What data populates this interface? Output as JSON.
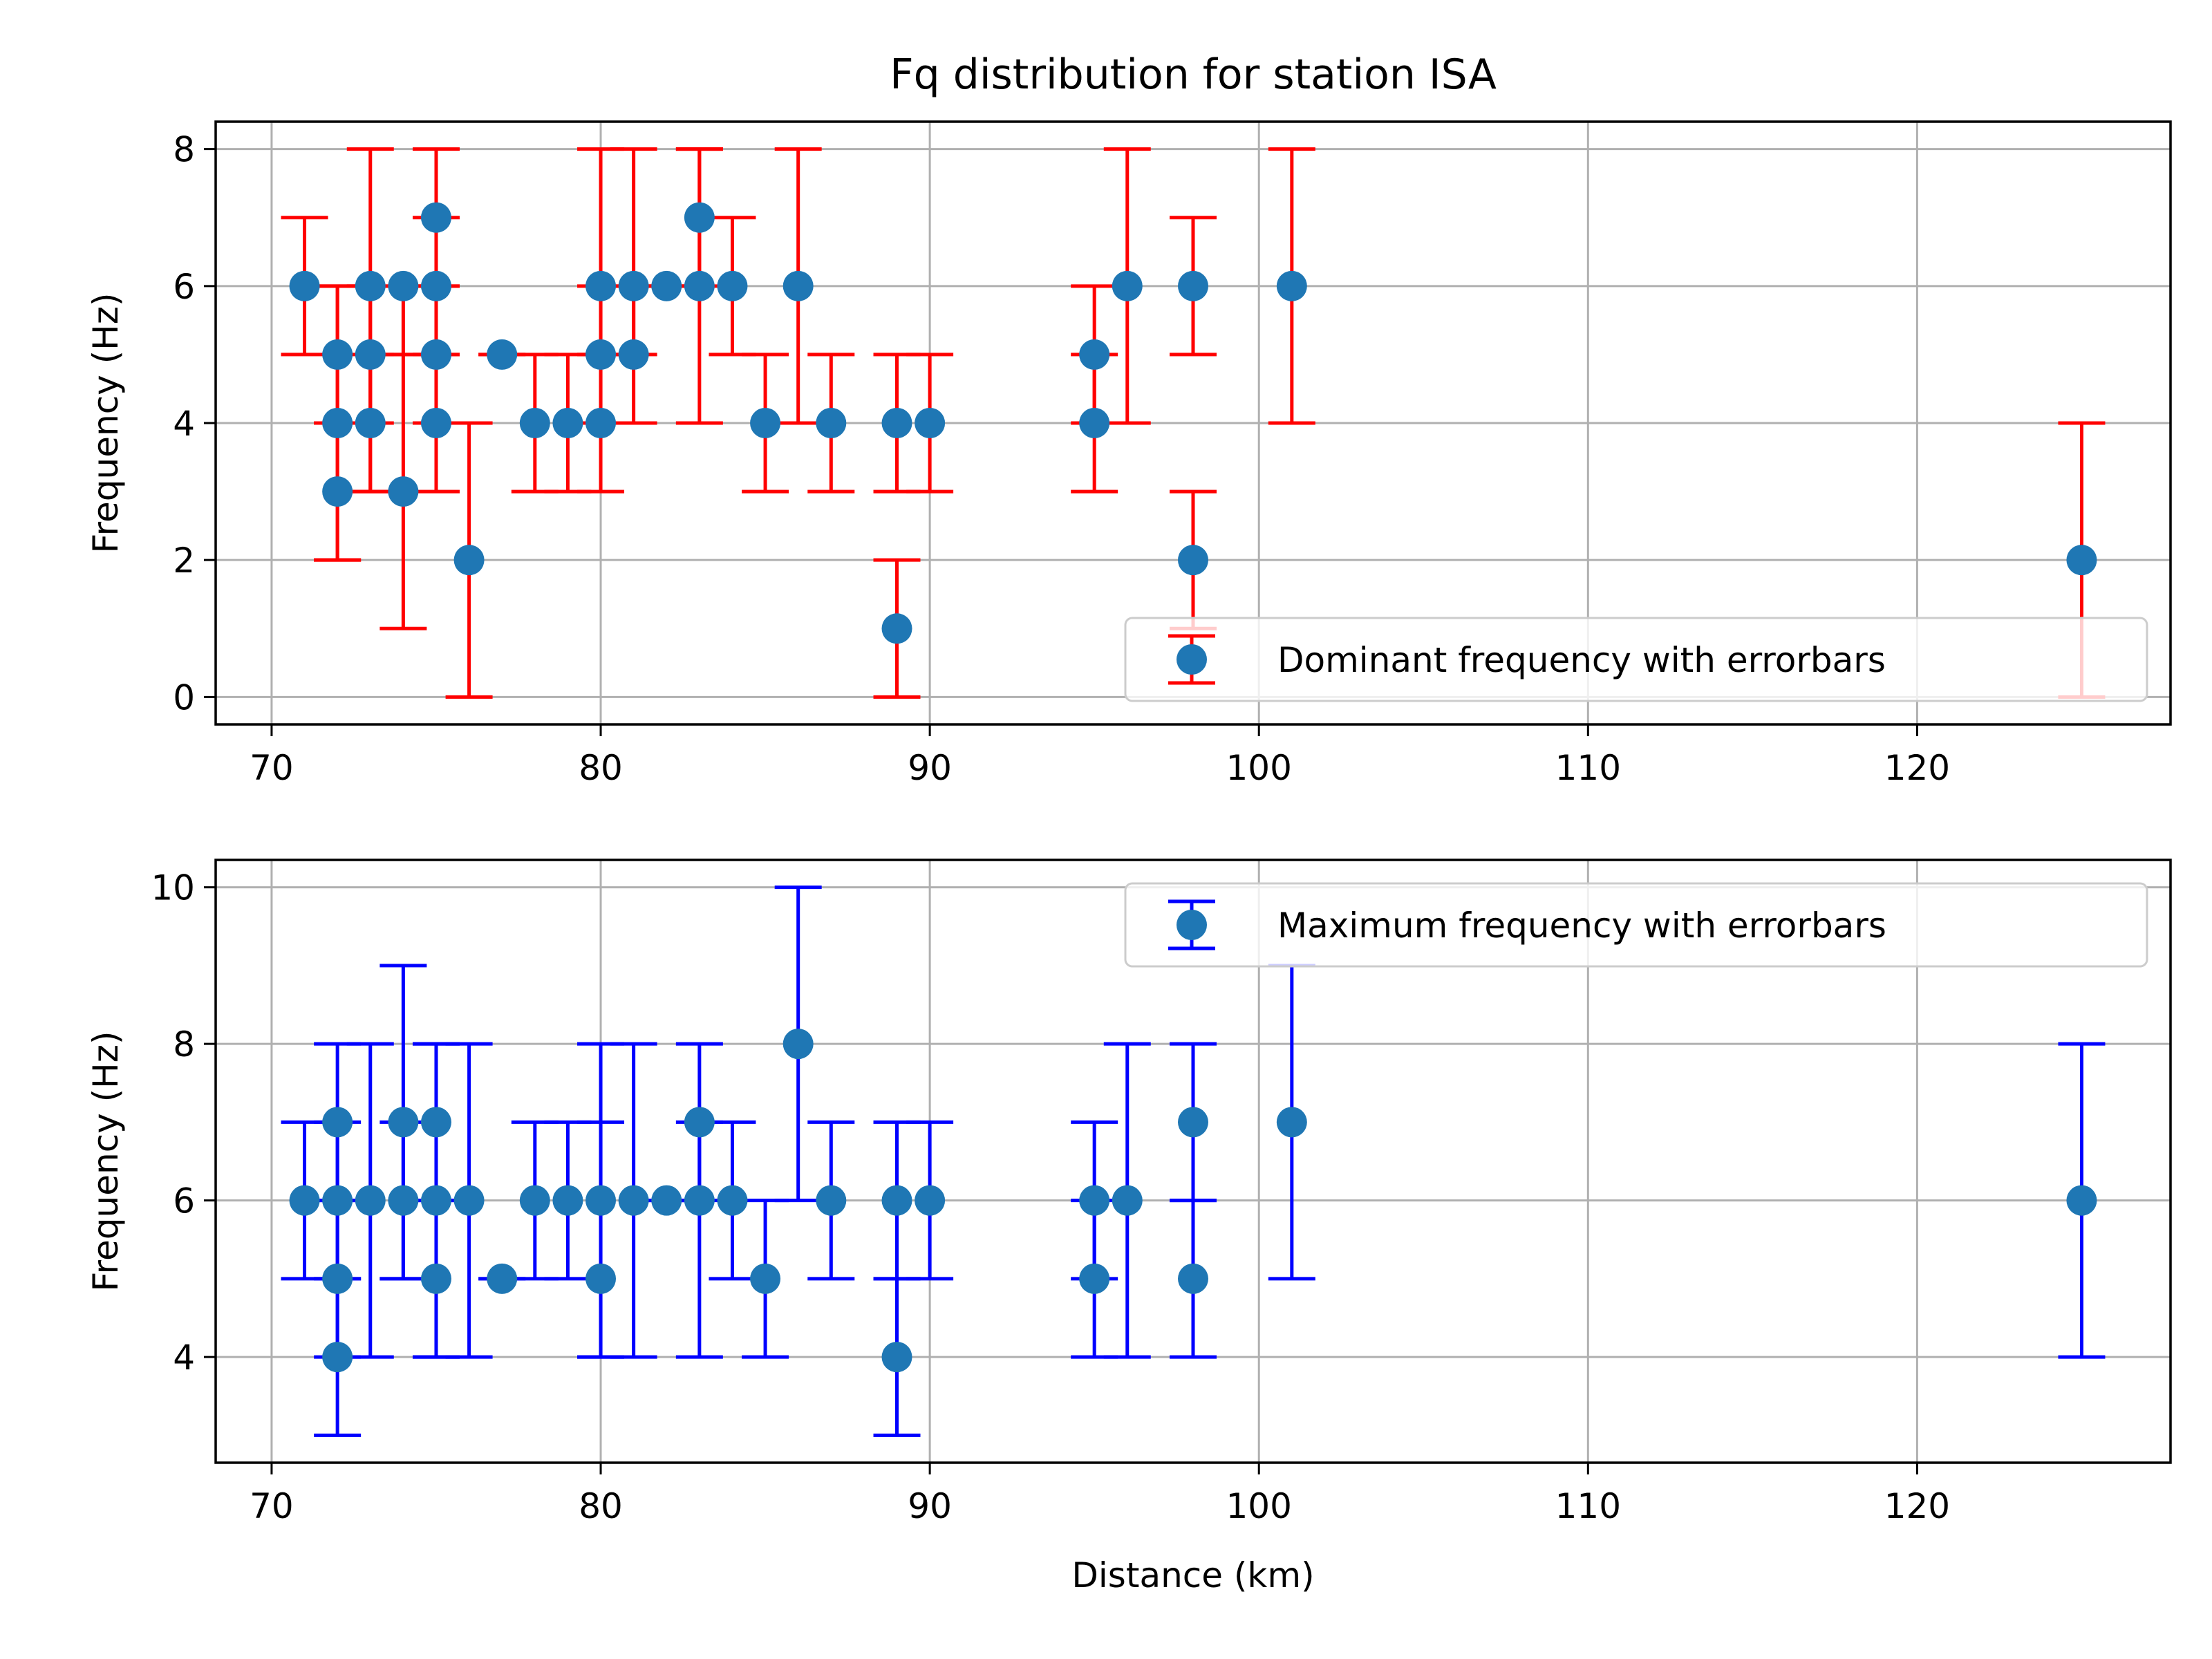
{
  "chart_data": [
    {
      "type": "errorbar",
      "title": "Fq distribution for station ISA",
      "xlabel": "",
      "ylabel": "Frequency (Hz)",
      "xlim": [
        68.3,
        127.7
      ],
      "ylim": [
        -0.4,
        8.4
      ],
      "xticks": [
        70,
        80,
        90,
        100,
        110,
        120
      ],
      "yticks": [
        0,
        2,
        4,
        6,
        8
      ],
      "grid": true,
      "legend_position": "lower-right",
      "marker_color": "#1f77b4",
      "errorbar_color": "#ff0000",
      "series": [
        {
          "name": "Dominant frequency with errorbars",
          "points": [
            {
              "x": 71,
              "y": 6,
              "ylow": 5,
              "yhigh": 7
            },
            {
              "x": 72,
              "y": 5,
              "ylow": 4,
              "yhigh": 6
            },
            {
              "x": 72,
              "y": 4,
              "ylow": 2,
              "yhigh": 6
            },
            {
              "x": 72,
              "y": 3,
              "ylow": 2,
              "yhigh": 4
            },
            {
              "x": 73,
              "y": 6,
              "ylow": 4,
              "yhigh": 8
            },
            {
              "x": 73,
              "y": 5,
              "ylow": 3,
              "yhigh": 6
            },
            {
              "x": 73,
              "y": 4,
              "ylow": 3,
              "yhigh": 5
            },
            {
              "x": 74,
              "y": 6,
              "ylow": 5,
              "yhigh": 6
            },
            {
              "x": 74,
              "y": 3,
              "ylow": 1,
              "yhigh": 5
            },
            {
              "x": 75,
              "y": 7,
              "ylow": 6,
              "yhigh": 8
            },
            {
              "x": 75,
              "y": 6,
              "ylow": 5,
              "yhigh": 7
            },
            {
              "x": 75,
              "y": 5,
              "ylow": 4,
              "yhigh": 6
            },
            {
              "x": 75,
              "y": 4,
              "ylow": 3,
              "yhigh": 5
            },
            {
              "x": 76,
              "y": 2,
              "ylow": 0,
              "yhigh": 4
            },
            {
              "x": 77,
              "y": 5,
              "ylow": 5,
              "yhigh": 5
            },
            {
              "x": 78,
              "y": 4,
              "ylow": 3,
              "yhigh": 5
            },
            {
              "x": 79,
              "y": 4,
              "ylow": 3,
              "yhigh": 5
            },
            {
              "x": 80,
              "y": 6,
              "ylow": 5,
              "yhigh": 8
            },
            {
              "x": 80,
              "y": 5,
              "ylow": 4,
              "yhigh": 6
            },
            {
              "x": 80,
              "y": 4,
              "ylow": 3,
              "yhigh": 5
            },
            {
              "x": 81,
              "y": 6,
              "ylow": 5,
              "yhigh": 8
            },
            {
              "x": 81,
              "y": 5,
              "ylow": 4,
              "yhigh": 6
            },
            {
              "x": 82,
              "y": 6,
              "ylow": 6,
              "yhigh": 6
            },
            {
              "x": 83,
              "y": 7,
              "ylow": 6,
              "yhigh": 8
            },
            {
              "x": 83,
              "y": 6,
              "ylow": 4,
              "yhigh": 8
            },
            {
              "x": 84,
              "y": 6,
              "ylow": 5,
              "yhigh": 7
            },
            {
              "x": 85,
              "y": 4,
              "ylow": 3,
              "yhigh": 5
            },
            {
              "x": 86,
              "y": 6,
              "ylow": 4,
              "yhigh": 8
            },
            {
              "x": 87,
              "y": 4,
              "ylow": 3,
              "yhigh": 5
            },
            {
              "x": 89,
              "y": 4,
              "ylow": 3,
              "yhigh": 5
            },
            {
              "x": 89,
              "y": 1,
              "ylow": 0,
              "yhigh": 2
            },
            {
              "x": 90,
              "y": 4,
              "ylow": 3,
              "yhigh": 5
            },
            {
              "x": 95,
              "y": 5,
              "ylow": 4,
              "yhigh": 6
            },
            {
              "x": 95,
              "y": 4,
              "ylow": 3,
              "yhigh": 5
            },
            {
              "x": 96,
              "y": 6,
              "ylow": 4,
              "yhigh": 8
            },
            {
              "x": 98,
              "y": 6,
              "ylow": 5,
              "yhigh": 7
            },
            {
              "x": 98,
              "y": 2,
              "ylow": 1,
              "yhigh": 3
            },
            {
              "x": 101,
              "y": 6,
              "ylow": 4,
              "yhigh": 8
            },
            {
              "x": 125,
              "y": 2,
              "ylow": 0,
              "yhigh": 4
            }
          ]
        }
      ]
    },
    {
      "type": "errorbar",
      "title": "",
      "xlabel": "Distance (km)",
      "ylabel": "Frequency (Hz)",
      "xlim": [
        68.3,
        127.7
      ],
      "ylim": [
        2.65,
        10.35
      ],
      "xticks": [
        70,
        80,
        90,
        100,
        110,
        120
      ],
      "yticks": [
        4,
        6,
        8,
        10
      ],
      "grid": true,
      "legend_position": "upper-right",
      "marker_color": "#1f77b4",
      "errorbar_color": "#0000ff",
      "series": [
        {
          "name": "Maximum frequency with errorbars",
          "points": [
            {
              "x": 71,
              "y": 6,
              "ylow": 5,
              "yhigh": 7
            },
            {
              "x": 72,
              "y": 7,
              "ylow": 6,
              "yhigh": 8
            },
            {
              "x": 72,
              "y": 6,
              "ylow": 5,
              "yhigh": 7
            },
            {
              "x": 72,
              "y": 5,
              "ylow": 4,
              "yhigh": 6
            },
            {
              "x": 72,
              "y": 4,
              "ylow": 3,
              "yhigh": 5
            },
            {
              "x": 73,
              "y": 6,
              "ylow": 4,
              "yhigh": 8
            },
            {
              "x": 74,
              "y": 7,
              "ylow": 5,
              "yhigh": 9
            },
            {
              "x": 74,
              "y": 6,
              "ylow": 5,
              "yhigh": 7
            },
            {
              "x": 75,
              "y": 7,
              "ylow": 6,
              "yhigh": 8
            },
            {
              "x": 75,
              "y": 6,
              "ylow": 4,
              "yhigh": 8
            },
            {
              "x": 75,
              "y": 5,
              "ylow": 4,
              "yhigh": 6
            },
            {
              "x": 76,
              "y": 6,
              "ylow": 4,
              "yhigh": 8
            },
            {
              "x": 77,
              "y": 5,
              "ylow": 5,
              "yhigh": 5
            },
            {
              "x": 78,
              "y": 6,
              "ylow": 5,
              "yhigh": 7
            },
            {
              "x": 79,
              "y": 6,
              "ylow": 5,
              "yhigh": 7
            },
            {
              "x": 80,
              "y": 6,
              "ylow": 4,
              "yhigh": 8
            },
            {
              "x": 80,
              "y": 5,
              "ylow": 4,
              "yhigh": 7
            },
            {
              "x": 81,
              "y": 6,
              "ylow": 4,
              "yhigh": 8
            },
            {
              "x": 82,
              "y": 6,
              "ylow": 6,
              "yhigh": 6
            },
            {
              "x": 83,
              "y": 7,
              "ylow": 6,
              "yhigh": 8
            },
            {
              "x": 83,
              "y": 6,
              "ylow": 4,
              "yhigh": 7
            },
            {
              "x": 84,
              "y": 6,
              "ylow": 5,
              "yhigh": 7
            },
            {
              "x": 85,
              "y": 5,
              "ylow": 4,
              "yhigh": 6
            },
            {
              "x": 86,
              "y": 8,
              "ylow": 6,
              "yhigh": 10
            },
            {
              "x": 87,
              "y": 6,
              "ylow": 5,
              "yhigh": 7
            },
            {
              "x": 89,
              "y": 6,
              "ylow": 5,
              "yhigh": 7
            },
            {
              "x": 89,
              "y": 4,
              "ylow": 3,
              "yhigh": 5
            },
            {
              "x": 90,
              "y": 6,
              "ylow": 5,
              "yhigh": 7
            },
            {
              "x": 95,
              "y": 6,
              "ylow": 5,
              "yhigh": 7
            },
            {
              "x": 95,
              "y": 5,
              "ylow": 4,
              "yhigh": 6
            },
            {
              "x": 96,
              "y": 6,
              "ylow": 4,
              "yhigh": 8
            },
            {
              "x": 98,
              "y": 7,
              "ylow": 6,
              "yhigh": 8
            },
            {
              "x": 98,
              "y": 5,
              "ylow": 4,
              "yhigh": 6
            },
            {
              "x": 101,
              "y": 7,
              "ylow": 5,
              "yhigh": 9
            },
            {
              "x": 125,
              "y": 6,
              "ylow": 4,
              "yhigh": 8
            }
          ]
        }
      ]
    }
  ]
}
